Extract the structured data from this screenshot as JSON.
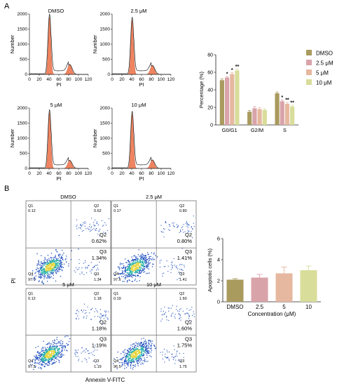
{
  "panel_labels": {
    "a": "A",
    "b": "B"
  },
  "colors": {
    "dmso": "#a99a5e",
    "c25": "#d9a3aa",
    "c5": "#e6b8a0",
    "c10": "#d8dd9a",
    "hist_fill": "#ef8460",
    "dot_low": "#1f4fbf",
    "dot_mid": "#22b0a6",
    "dot_high": "#e8d53a"
  },
  "histograms": {
    "xlabel": "PI",
    "ylabel": "Number",
    "xticks": [
      "0",
      "20",
      "40",
      "60",
      "80",
      "100",
      "120"
    ],
    "yticks": [
      "0",
      "500",
      "1000",
      "1500",
      "2000"
    ],
    "panels": [
      {
        "title": "DMSO",
        "g1_peak": 1900,
        "g2_peak": 330
      },
      {
        "title": "2.5 μM",
        "g1_peak": 1800,
        "g2_peak": 300
      },
      {
        "title": "5 μM",
        "g1_peak": 1850,
        "g2_peak": 270
      },
      {
        "title": "10 μM",
        "g1_peak": 1800,
        "g2_peak": 280
      }
    ]
  },
  "flow": {
    "xlabel": "Annexin V-FITC",
    "ylabel": "PI",
    "panels": [
      {
        "title": "DMSO",
        "q1": "0.12",
        "q2": "0.62",
        "q3": "1.34",
        "q4": "97.7",
        "q2_big": "Q2\n0.62%",
        "q3_big": "Q3\n1.34%"
      },
      {
        "title": "2.5 μM",
        "q1": "0.17",
        "q2": "0.80",
        "q3": "1.41",
        "q4": "97.6",
        "q2_big": "Q2\n0.80%",
        "q3_big": "Q3\n1.41%"
      },
      {
        "title": "5 μM",
        "q1": "0.12",
        "q2": "1.18",
        "q3": "1.19",
        "q4": "97.5",
        "q2_big": "Q2\n1.18%",
        "q3_big": "Q3\n1.19%"
      },
      {
        "title": "10 μM",
        "q1": "0.19",
        "q2": "1.60",
        "q3": "1.75",
        "q4": "96.5",
        "q2_big": "Q2\n1.60%",
        "q3_big": "Q3\n1.75%"
      }
    ]
  },
  "chart_data": [
    {
      "type": "bar",
      "ylabel": "Percentage (%)",
      "xlabel": "",
      "categories": [
        "G0/G1",
        "G2/M",
        "S"
      ],
      "ylim": [
        0,
        80
      ],
      "yticks": [
        0,
        20,
        40,
        60,
        80
      ],
      "legend_position": "right",
      "series": [
        {
          "name": "DMSO",
          "values": [
            51,
            15,
            36
          ],
          "errors": [
            1.5,
            1.5,
            1.5
          ],
          "sig": [
            "",
            "",
            ""
          ]
        },
        {
          "name": "2.5 μM",
          "values": [
            54,
            19,
            27
          ],
          "errors": [
            1.2,
            2.0,
            1.5
          ],
          "sig": [
            "*",
            "",
            "*"
          ]
        },
        {
          "name": "5 μM",
          "values": [
            58,
            18,
            24
          ],
          "errors": [
            1.5,
            1.5,
            1.5
          ],
          "sig": [
            "*",
            "",
            "**"
          ]
        },
        {
          "name": "10 μM",
          "values": [
            62,
            17,
            21
          ],
          "errors": [
            1.5,
            1.5,
            1.5
          ],
          "sig": [
            "**",
            "",
            "**"
          ]
        }
      ]
    },
    {
      "type": "bar",
      "ylabel": "Apoptotic cells (%)",
      "xlabel": "Concentration (μM)",
      "categories": [
        "DMSO",
        "2.5",
        "5",
        "10"
      ],
      "values": [
        2.1,
        2.3,
        2.7,
        3.0
      ],
      "errors": [
        0.1,
        0.3,
        0.6,
        0.4
      ],
      "ylim": [
        0,
        6
      ],
      "yticks": [
        0,
        2,
        4,
        6
      ]
    }
  ]
}
